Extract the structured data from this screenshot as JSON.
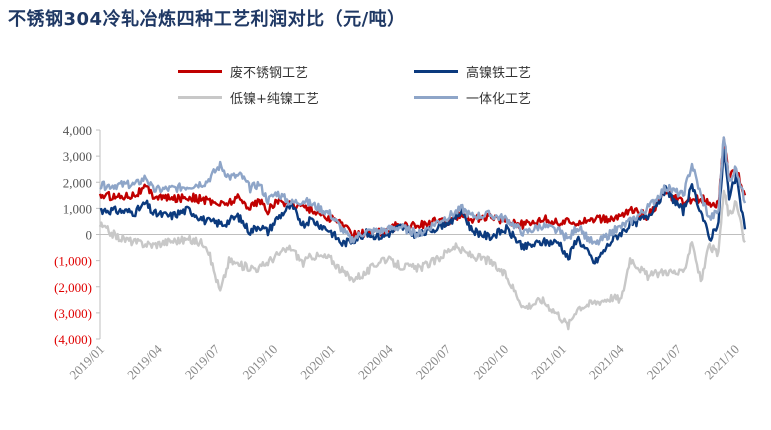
{
  "title": "不锈钢304冷轧冶炼四种工艺利润对比（元/吨）",
  "legend": [
    {
      "label": "废不锈钢工艺",
      "color": "#c00000"
    },
    {
      "label": "高镍铁工艺",
      "color": "#0b3a7e"
    },
    {
      "label": "低镍+纯镍工艺",
      "color": "#c8c8c8"
    },
    {
      "label": "一体化工艺",
      "color": "#8ea5c8"
    }
  ],
  "chart_data": {
    "type": "line",
    "title": "不锈钢304冷轧冶炼四种工艺利润对比（元/吨）",
    "xlabel": "",
    "ylabel": "",
    "ylim": [
      -4000,
      4000
    ],
    "yticks": [
      {
        "value": 4000,
        "label": "4,000"
      },
      {
        "value": 3000,
        "label": "3,000"
      },
      {
        "value": 2000,
        "label": "2,000"
      },
      {
        "value": 1000,
        "label": "1,000"
      },
      {
        "value": 0,
        "label": "0"
      },
      {
        "value": -1000,
        "label": "(1,000)"
      },
      {
        "value": -2000,
        "label": "(2,000)"
      },
      {
        "value": -3000,
        "label": "(3,000)"
      },
      {
        "value": -4000,
        "label": "(4,000)"
      }
    ],
    "x_ticks": [
      "2019/01",
      "2019/04",
      "2019/07",
      "2019/10",
      "2020/01",
      "2020/04",
      "2020/07",
      "2020/10",
      "2021/01",
      "2021/04",
      "2021/07",
      "2021/10"
    ],
    "x_range_months": [
      0,
      36.5
    ],
    "grid": false,
    "legend_position": "top",
    "series": [
      {
        "name": "废不锈钢工艺",
        "color": "#c00000",
        "points": [
          [
            0,
            1500
          ],
          [
            1,
            1450
          ],
          [
            2,
            1550
          ],
          [
            2.6,
            1800
          ],
          [
            3,
            1500
          ],
          [
            4,
            1350
          ],
          [
            5,
            1450
          ],
          [
            6,
            1300
          ],
          [
            7,
            1150
          ],
          [
            7.8,
            1400
          ],
          [
            8.5,
            1050
          ],
          [
            9,
            1300
          ],
          [
            9.5,
            900
          ],
          [
            10,
            1300
          ],
          [
            10.8,
            1150
          ],
          [
            11.5,
            1100
          ],
          [
            12,
            950
          ],
          [
            13,
            600
          ],
          [
            13.7,
            450
          ],
          [
            14.2,
            0
          ],
          [
            15,
            50
          ],
          [
            16,
            100
          ],
          [
            17,
            400
          ],
          [
            18,
            350
          ],
          [
            19,
            500
          ],
          [
            20,
            500
          ],
          [
            20.5,
            850
          ],
          [
            21,
            600
          ],
          [
            22,
            650
          ],
          [
            23,
            550
          ],
          [
            24,
            350
          ],
          [
            25,
            600
          ],
          [
            26,
            450
          ],
          [
            27,
            500
          ],
          [
            28,
            600
          ],
          [
            29,
            550
          ],
          [
            30,
            950
          ],
          [
            31,
            700
          ],
          [
            32,
            1600
          ],
          [
            33,
            1200
          ],
          [
            34,
            1400
          ],
          [
            35,
            1100
          ],
          [
            35.3,
            3600
          ],
          [
            35.6,
            2200
          ],
          [
            36,
            2500
          ],
          [
            36.5,
            1500
          ]
        ]
      },
      {
        "name": "高镍铁工艺",
        "color": "#0b3a7e",
        "points": [
          [
            0,
            950
          ],
          [
            1,
            900
          ],
          [
            2,
            850
          ],
          [
            2.6,
            1200
          ],
          [
            3,
            800
          ],
          [
            4,
            700
          ],
          [
            5,
            950
          ],
          [
            6,
            500
          ],
          [
            7,
            400
          ],
          [
            7.8,
            700
          ],
          [
            8.5,
            100
          ],
          [
            9,
            350
          ],
          [
            9.5,
            100
          ],
          [
            10,
            600
          ],
          [
            10.8,
            1100
          ],
          [
            11.5,
            400
          ],
          [
            12,
            550
          ],
          [
            13,
            150
          ],
          [
            13.7,
            -350
          ],
          [
            14.2,
            -250
          ],
          [
            15,
            50
          ],
          [
            16,
            -100
          ],
          [
            17,
            300
          ],
          [
            18,
            -50
          ],
          [
            19,
            250
          ],
          [
            20,
            600
          ],
          [
            20.5,
            900
          ],
          [
            21,
            200
          ],
          [
            22,
            -100
          ],
          [
            23,
            200
          ],
          [
            24,
            -500
          ],
          [
            25,
            -300
          ],
          [
            26,
            -300
          ],
          [
            26.5,
            -950
          ],
          [
            27,
            -100
          ],
          [
            28,
            -1100
          ],
          [
            29,
            -200
          ],
          [
            30,
            350
          ],
          [
            31,
            700
          ],
          [
            32,
            1700
          ],
          [
            33,
            900
          ],
          [
            33.5,
            1800
          ],
          [
            34,
            900
          ],
          [
            34.5,
            -200
          ],
          [
            35,
            500
          ],
          [
            35.3,
            3200
          ],
          [
            35.6,
            1500
          ],
          [
            36,
            2200
          ],
          [
            36.5,
            200
          ]
        ]
      },
      {
        "name": "低镍+纯镍工艺",
        "color": "#c8c8c8",
        "points": [
          [
            0,
            350
          ],
          [
            1,
            -100
          ],
          [
            2,
            -300
          ],
          [
            3,
            -400
          ],
          [
            4,
            -250
          ],
          [
            5,
            -200
          ],
          [
            6,
            -350
          ],
          [
            6.8,
            -2200
          ],
          [
            7.3,
            -1000
          ],
          [
            8,
            -1200
          ],
          [
            9,
            -1300
          ],
          [
            10,
            -800
          ],
          [
            10.8,
            -500
          ],
          [
            11.5,
            -1100
          ],
          [
            12,
            -800
          ],
          [
            13,
            -900
          ],
          [
            13.7,
            -1400
          ],
          [
            14.2,
            -1700
          ],
          [
            15,
            -1500
          ],
          [
            16,
            -900
          ],
          [
            17,
            -1200
          ],
          [
            18,
            -1300
          ],
          [
            19,
            -1000
          ],
          [
            20,
            -450
          ],
          [
            21,
            -800
          ],
          [
            22,
            -1000
          ],
          [
            23,
            -1600
          ],
          [
            24,
            -2800
          ],
          [
            25,
            -2500
          ],
          [
            26,
            -3100
          ],
          [
            26.5,
            -3500
          ],
          [
            27,
            -2800
          ],
          [
            28,
            -2600
          ],
          [
            29,
            -2400
          ],
          [
            29.5,
            -2500
          ],
          [
            30,
            -900
          ],
          [
            31,
            -1600
          ],
          [
            32,
            -1400
          ],
          [
            33,
            -1500
          ],
          [
            33.5,
            -200
          ],
          [
            34,
            -1800
          ],
          [
            34.5,
            -400
          ],
          [
            35,
            -800
          ],
          [
            35.3,
            1700
          ],
          [
            35.6,
            700
          ],
          [
            36,
            1200
          ],
          [
            36.5,
            -300
          ]
        ]
      },
      {
        "name": "一体化工艺",
        "color": "#8ea5c8",
        "points": [
          [
            0,
            1850
          ],
          [
            1,
            1900
          ],
          [
            2,
            1900
          ],
          [
            2.6,
            2200
          ],
          [
            3,
            1700
          ],
          [
            4,
            1750
          ],
          [
            5,
            1850
          ],
          [
            6,
            2000
          ],
          [
            6.8,
            2650
          ],
          [
            7.3,
            2200
          ],
          [
            8,
            2250
          ],
          [
            8.5,
            1750
          ],
          [
            9,
            1950
          ],
          [
            9.5,
            1300
          ],
          [
            10,
            1600
          ],
          [
            10.8,
            1200
          ],
          [
            11.5,
            1300
          ],
          [
            12,
            1150
          ],
          [
            13,
            800
          ],
          [
            13.7,
            200
          ],
          [
            14.2,
            -200
          ],
          [
            15,
            100
          ],
          [
            16,
            150
          ],
          [
            17,
            300
          ],
          [
            18,
            0
          ],
          [
            19,
            450
          ],
          [
            20,
            800
          ],
          [
            20.5,
            1000
          ],
          [
            21,
            700
          ],
          [
            22,
            750
          ],
          [
            23,
            600
          ],
          [
            24,
            50
          ],
          [
            25,
            350
          ],
          [
            26,
            100
          ],
          [
            26.5,
            -200
          ],
          [
            27,
            300
          ],
          [
            28,
            -400
          ],
          [
            29,
            100
          ],
          [
            30,
            500
          ],
          [
            31,
            1000
          ],
          [
            32,
            1800
          ],
          [
            33,
            1500
          ],
          [
            33.5,
            2700
          ],
          [
            34,
            1500
          ],
          [
            34.5,
            600
          ],
          [
            35,
            900
          ],
          [
            35.3,
            3800
          ],
          [
            35.6,
            2000
          ],
          [
            36,
            2600
          ],
          [
            36.5,
            1200
          ]
        ]
      }
    ]
  }
}
